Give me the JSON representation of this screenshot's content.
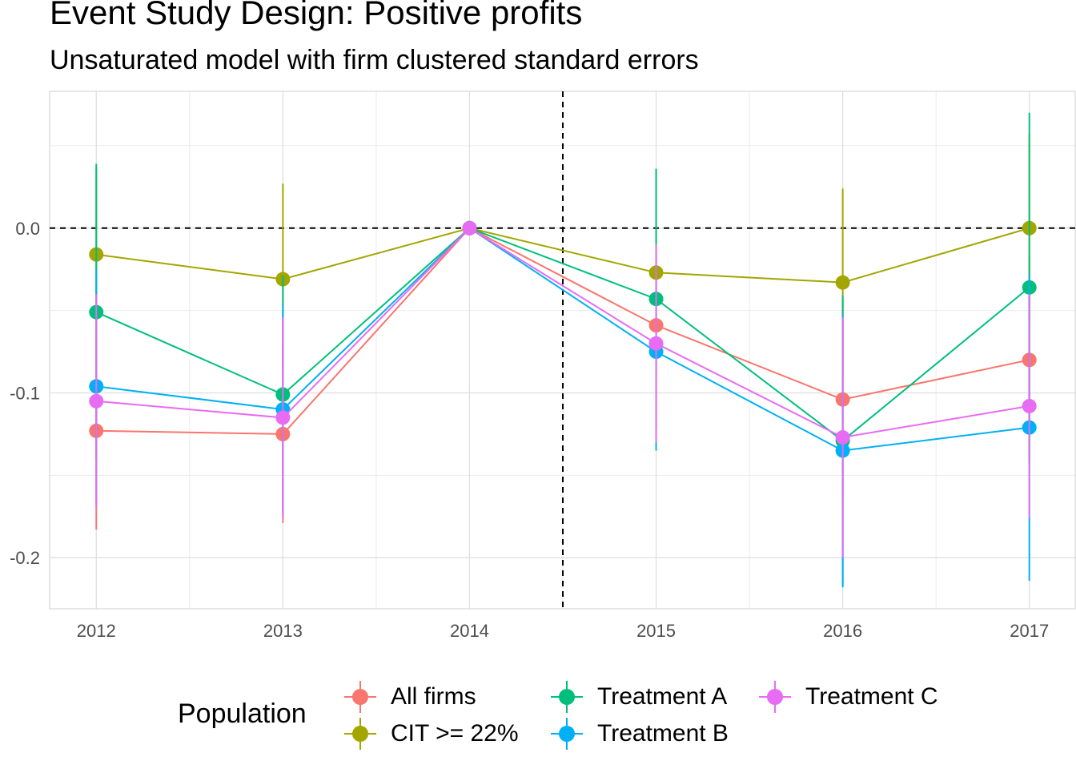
{
  "title": "Event Study Design: Positive profits",
  "subtitle": "Unsaturated model with firm clustered standard errors",
  "legend": {
    "title": "Population",
    "items": [
      {
        "label": "All firms",
        "color": "#F8766D"
      },
      {
        "label": "CIT >= 22%",
        "color": "#A3A500"
      },
      {
        "label": "Treatment A",
        "color": "#00BF7D"
      },
      {
        "label": "Treatment B",
        "color": "#00B0F6"
      },
      {
        "label": "Treatment C",
        "color": "#E76BF3"
      }
    ]
  },
  "chart_data": {
    "type": "line",
    "x": [
      2012,
      2013,
      2014,
      2015,
      2016,
      2017
    ],
    "x_tick_labels": [
      "2012",
      "2013",
      "2014",
      "2015",
      "2016",
      "2017"
    ],
    "y_ticks": [
      0.0,
      -0.1,
      -0.2
    ],
    "y_tick_labels": [
      "0.0",
      "-0.1",
      "-0.2"
    ],
    "xlim": [
      2011.75,
      2017.25
    ],
    "ylim": [
      -0.231,
      0.083
    ],
    "grid": true,
    "reference_lines": {
      "horizontal_y": 0.0,
      "vertical_x": 2014.5,
      "style": "dashed"
    },
    "legend_position": "bottom",
    "series": [
      {
        "name": "All firms",
        "color": "#F8766D",
        "values": [
          -0.123,
          -0.125,
          0.0,
          -0.059,
          -0.104,
          -0.08
        ],
        "lower": [
          -0.183,
          -0.179,
          0.0,
          -0.115,
          -0.165,
          -0.143
        ],
        "upper": [
          -0.063,
          -0.071,
          0.0,
          -0.003,
          -0.043,
          -0.017
        ]
      },
      {
        "name": "CIT >= 22%",
        "color": "#A3A500",
        "values": [
          -0.016,
          -0.031,
          0.0,
          -0.027,
          -0.033,
          0.0
        ],
        "lower": [
          -0.068,
          -0.089,
          0.0,
          -0.09,
          -0.09,
          -0.057
        ],
        "upper": [
          0.036,
          0.027,
          0.0,
          0.036,
          0.024,
          0.057
        ]
      },
      {
        "name": "Treatment A",
        "color": "#00BF7D",
        "values": [
          -0.051,
          -0.101,
          0.0,
          -0.043,
          -0.129,
          -0.036
        ],
        "lower": [
          -0.141,
          -0.173,
          0.0,
          -0.122,
          -0.217,
          -0.142
        ],
        "upper": [
          0.039,
          -0.029,
          0.0,
          0.036,
          -0.041,
          0.07
        ]
      },
      {
        "name": "Treatment B",
        "color": "#00B0F6",
        "values": [
          -0.096,
          -0.11,
          0.0,
          -0.075,
          -0.135,
          -0.121
        ],
        "lower": [
          -0.167,
          -0.173,
          0.0,
          -0.135,
          -0.218,
          -0.214
        ],
        "upper": [
          -0.025,
          -0.047,
          0.0,
          -0.015,
          -0.052,
          -0.028
        ]
      },
      {
        "name": "Treatment C",
        "color": "#E76BF3",
        "values": [
          -0.105,
          -0.115,
          0.0,
          -0.07,
          -0.127,
          -0.108
        ],
        "lower": [
          -0.17,
          -0.176,
          0.0,
          -0.13,
          -0.2,
          -0.176
        ],
        "upper": [
          -0.04,
          -0.054,
          0.0,
          -0.01,
          -0.054,
          -0.04
        ]
      }
    ]
  }
}
